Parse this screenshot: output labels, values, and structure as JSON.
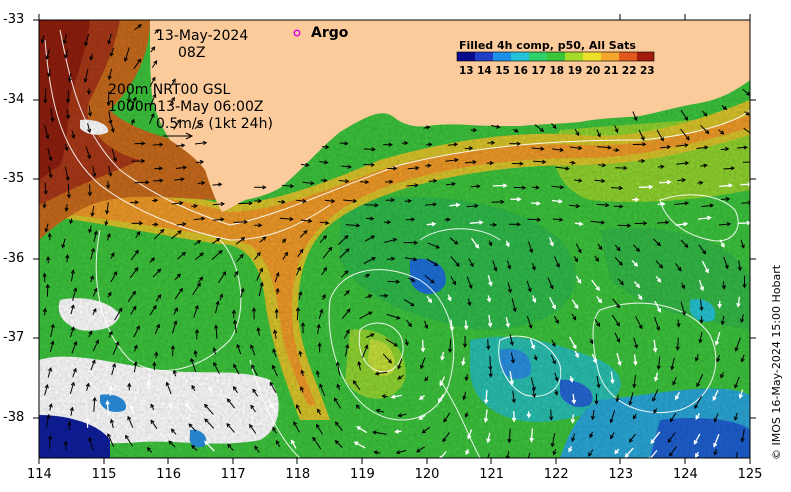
{
  "map": {
    "date_line": "13-May-2024",
    "time_line": "08Z",
    "argo_label": "Argo",
    "current_info": {
      "line1": "200m  NRT00 GSL",
      "line2": "1000m13-May 06:00Z",
      "line3": "0.5m/s (1kt 24h)"
    },
    "colorbar": {
      "title": "Filled 4h comp, p50, All Sats",
      "ticks": [
        "13",
        "14",
        "15",
        "16",
        "17",
        "18",
        "19",
        "20",
        "21",
        "22",
        "23"
      ],
      "colors": [
        "#0a0a8c",
        "#1f3fc6",
        "#1e8fe8",
        "#22c2d8",
        "#2fcf6a",
        "#39c43a",
        "#a6dc28",
        "#eee02a",
        "#f4a72a",
        "#e0581c",
        "#a11c0c"
      ]
    },
    "x_ticks": [
      "114",
      "115",
      "116",
      "117",
      "118",
      "119",
      "120",
      "121",
      "122",
      "123",
      "124",
      "125"
    ],
    "y_ticks": [
      "-33",
      "-34",
      "-35",
      "-36",
      "-37",
      "-38"
    ],
    "credit": "© IMOS 16-May-2024 15:00 Hobart",
    "colors": {
      "land": "#fccb9c",
      "warm_current": "#e8891c",
      "offshore": "#3fc43f",
      "cloud": "#ffffff",
      "argo_marker": "#e000e0"
    }
  }
}
